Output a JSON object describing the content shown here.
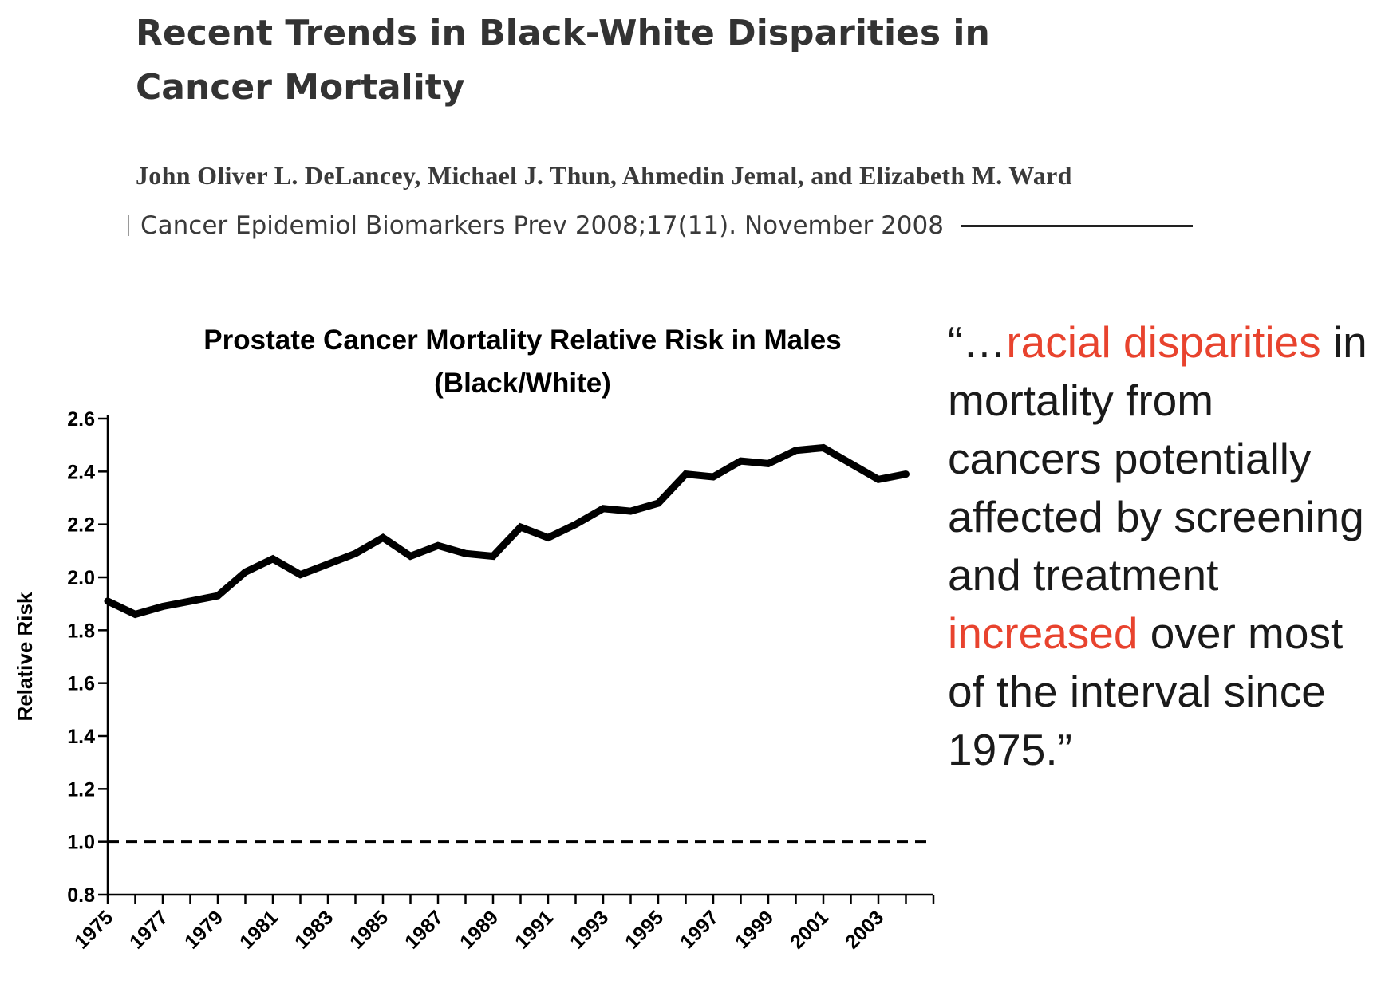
{
  "paper": {
    "title": "Recent Trends in Black-White Disparities in Cancer Mortality",
    "authors": "John Oliver L. DeLancey, Michael J. Thun, Ahmedin Jemal, and Elizabeth M. Ward",
    "citation": "Cancer Epidemiol Biomarkers Prev 2008;17(11). November 2008"
  },
  "quote": {
    "part1": "“…",
    "highlight1": "racial disparities",
    "part2": " in mortality from cancers potentially affected by screening and treatment ",
    "highlight2": "increased",
    "part3": " over most of the interval since 1975.”",
    "highlight_color": "#e8432e"
  },
  "chart_data": {
    "type": "line",
    "title": "Prostate Cancer Mortality Relative Risk in Males (Black/White)",
    "xlabel": "",
    "ylabel": "Relative Risk",
    "ylim": [
      0.8,
      2.6
    ],
    "yticks": [
      0.8,
      1.0,
      1.2,
      1.4,
      1.6,
      1.8,
      2.0,
      2.2,
      2.4,
      2.6
    ],
    "xlim": [
      1975,
      2005
    ],
    "xtick_labels": [
      1975,
      1977,
      1979,
      1981,
      1983,
      1985,
      1987,
      1989,
      1991,
      1993,
      1995,
      1997,
      1999,
      2001,
      2003
    ],
    "grid": false,
    "series": [
      {
        "x": [
          1975,
          1976,
          1977,
          1978,
          1979,
          1980,
          1981,
          1982,
          1983,
          1984,
          1985,
          1986,
          1987,
          1988,
          1989,
          1990,
          1991,
          1992,
          1993,
          1994,
          1995,
          1996,
          1997,
          1998,
          1999,
          2000,
          2001,
          2002,
          2003,
          2004
        ],
        "values": [
          1.91,
          1.86,
          1.89,
          1.91,
          1.93,
          2.02,
          2.07,
          2.01,
          2.05,
          2.09,
          2.15,
          2.08,
          2.12,
          2.09,
          2.08,
          2.19,
          2.15,
          2.2,
          2.26,
          2.25,
          2.28,
          2.39,
          2.38,
          2.44,
          2.43,
          2.48,
          2.49,
          2.43,
          2.37,
          2.39
        ],
        "color": "#000000"
      }
    ],
    "reference_line": {
      "y": 1.0,
      "style": "dashed",
      "color": "#000000"
    }
  }
}
